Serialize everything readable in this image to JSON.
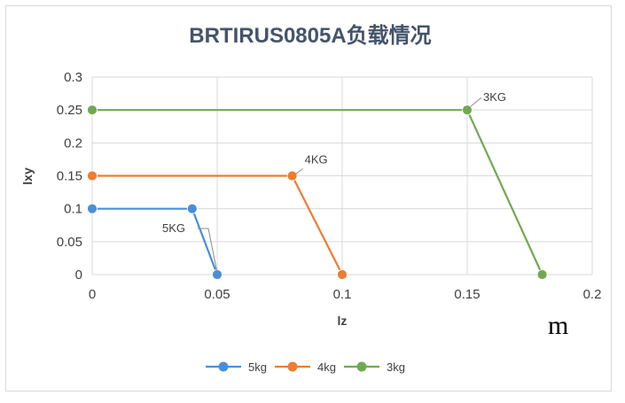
{
  "chart_data": {
    "type": "line",
    "title": "BRTIRUS0805A负载情况",
    "xlabel": "lz",
    "ylabel": "lxy",
    "xlim": [
      0,
      0.2
    ],
    "ylim": [
      0,
      0.3
    ],
    "x_ticks": [
      "0",
      "0.05",
      "0.1",
      "0.15",
      "0.2"
    ],
    "y_ticks": [
      "0",
      "0.05",
      "0.1",
      "0.15",
      "0.2",
      "0.25",
      "0.3"
    ],
    "grid": true,
    "legend_position": "bottom",
    "unit_note": "m",
    "series": [
      {
        "name": "5kg",
        "color": "#4a8fd6",
        "points": [
          [
            0,
            0.1
          ],
          [
            0.04,
            0.1
          ],
          [
            0.05,
            0
          ]
        ],
        "annotation": "5KG"
      },
      {
        "name": "4kg",
        "color": "#ed7d31",
        "points": [
          [
            0,
            0.15
          ],
          [
            0.08,
            0.15
          ],
          [
            0.1,
            0
          ]
        ],
        "annotation": "4KG"
      },
      {
        "name": "3kg",
        "color": "#70a952",
        "points": [
          [
            0,
            0.25
          ],
          [
            0.15,
            0.25
          ],
          [
            0.18,
            0
          ]
        ],
        "annotation": "3KG"
      }
    ]
  }
}
